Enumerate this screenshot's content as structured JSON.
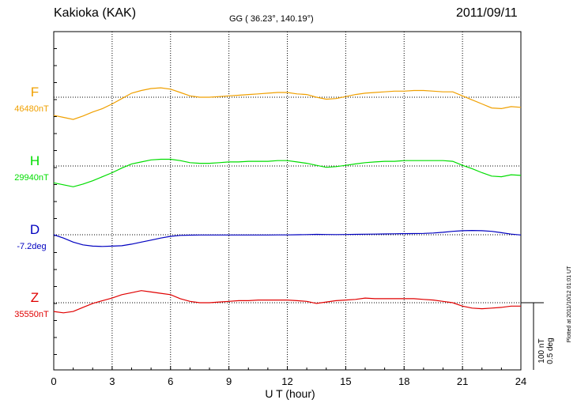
{
  "header": {
    "station": "Kakioka (KAK)",
    "coords": "GG ( 36.23°, 140.19°)",
    "date": "2011/09/11"
  },
  "scale_note": {
    "line1": "100 nT",
    "line2": "0.5 deg"
  },
  "footer_note": "Plotted at 2011/10/12 01:01  UT",
  "colors": {
    "F": "#f0a000",
    "H": "#00dd00",
    "D": "#0000c0",
    "Z": "#e00000"
  },
  "chart_data": {
    "type": "line",
    "xlabel": "U T (hour)",
    "xlim": [
      0,
      24
    ],
    "xticks": [
      "0",
      "3",
      "6",
      "9",
      "12",
      "15",
      "18",
      "21",
      "24"
    ],
    "grid": true,
    "scale_bar": "100 nT / 0.5 deg",
    "series": [
      {
        "name": "F",
        "baseline_label": "46480nT",
        "unit": "nT",
        "baseline": 46480,
        "x": [
          0,
          0.5,
          1,
          1.5,
          2,
          2.5,
          3,
          3.5,
          4,
          4.5,
          5,
          5.5,
          6,
          6.5,
          7,
          7.5,
          8,
          8.5,
          9,
          9.5,
          10,
          10.5,
          11,
          11.5,
          12,
          12.5,
          13,
          13.5,
          14,
          14.5,
          15,
          15.5,
          16,
          16.5,
          17,
          17.5,
          18,
          18.5,
          19,
          19.5,
          20,
          20.5,
          21,
          21.5,
          22,
          22.5,
          23,
          23.5,
          24
        ],
        "values": [
          46453,
          46450,
          46447,
          46452,
          46458,
          46463,
          46470,
          46478,
          46486,
          46490,
          46493,
          46494,
          46492,
          46487,
          46482,
          46480,
          46480,
          46481,
          46482,
          46483,
          46484,
          46485,
          46486,
          46487,
          46487,
          46485,
          46484,
          46480,
          46477,
          46478,
          46481,
          46484,
          46486,
          46487,
          46488,
          46489,
          46489,
          46490,
          46490,
          46489,
          46488,
          46488,
          46482,
          46476,
          46470,
          46464,
          46463,
          46466,
          46465
        ]
      },
      {
        "name": "H",
        "baseline_label": "29940nT",
        "unit": "nT",
        "baseline": 29940,
        "x": [
          0,
          0.5,
          1,
          1.5,
          2,
          2.5,
          3,
          3.5,
          4,
          4.5,
          5,
          5.5,
          6,
          6.5,
          7,
          7.5,
          8,
          8.5,
          9,
          9.5,
          10,
          10.5,
          11,
          11.5,
          12,
          12.5,
          13,
          13.5,
          14,
          14.5,
          15,
          15.5,
          16,
          16.5,
          17,
          17.5,
          18,
          18.5,
          19,
          19.5,
          20,
          20.5,
          21,
          21.5,
          22,
          22.5,
          23,
          23.5,
          24
        ],
        "values": [
          29915,
          29912,
          29909,
          29913,
          29918,
          29924,
          29930,
          29937,
          29943,
          29946,
          29949,
          29950,
          29950,
          29948,
          29945,
          29944,
          29944,
          29945,
          29946,
          29946,
          29947,
          29947,
          29947,
          29948,
          29948,
          29946,
          29944,
          29941,
          29938,
          29939,
          29941,
          29943,
          29945,
          29946,
          29947,
          29947,
          29948,
          29948,
          29948,
          29948,
          29948,
          29947,
          29941,
          29936,
          29930,
          29925,
          29924,
          29927,
          29926
        ]
      },
      {
        "name": "D",
        "baseline_label": "-7.2deg",
        "unit": "deg",
        "baseline": -7.2,
        "x": [
          0,
          0.5,
          1,
          1.5,
          2,
          2.5,
          3,
          3.5,
          4,
          4.5,
          5,
          5.5,
          6,
          6.5,
          7,
          7.5,
          8,
          8.5,
          9,
          9.5,
          10,
          10.5,
          11,
          11.5,
          12,
          12.5,
          13,
          13.5,
          14,
          14.5,
          15,
          15.5,
          16,
          16.5,
          17,
          17.5,
          18,
          18.5,
          19,
          19.5,
          20,
          20.5,
          21,
          21.5,
          22,
          22.5,
          23,
          23.5,
          24
        ],
        "values": [
          -7.2,
          -7.225,
          -7.255,
          -7.275,
          -7.285,
          -7.287,
          -7.285,
          -7.282,
          -7.27,
          -7.255,
          -7.24,
          -7.225,
          -7.212,
          -7.205,
          -7.203,
          -7.202,
          -7.202,
          -7.202,
          -7.202,
          -7.202,
          -7.202,
          -7.202,
          -7.202,
          -7.201,
          -7.201,
          -7.2,
          -7.199,
          -7.197,
          -7.198,
          -7.199,
          -7.198,
          -7.197,
          -7.196,
          -7.195,
          -7.194,
          -7.193,
          -7.192,
          -7.191,
          -7.19,
          -7.187,
          -7.182,
          -7.175,
          -7.17,
          -7.168,
          -7.17,
          -7.175,
          -7.185,
          -7.195,
          -7.202
        ]
      },
      {
        "name": "Z",
        "baseline_label": "35550nT",
        "unit": "nT",
        "baseline": 35550,
        "x": [
          0,
          0.5,
          1,
          1.5,
          2,
          2.5,
          3,
          3.5,
          4,
          4.5,
          5,
          5.5,
          6,
          6.5,
          7,
          7.5,
          8,
          8.5,
          9,
          9.5,
          10,
          10.5,
          11,
          11.5,
          12,
          12.5,
          13,
          13.5,
          14,
          14.5,
          15,
          15.5,
          16,
          16.5,
          17,
          17.5,
          18,
          18.5,
          19,
          19.5,
          20,
          20.5,
          21,
          21.5,
          22,
          22.5,
          23,
          23.5,
          24
        ],
        "values": [
          35537,
          35535,
          35537,
          35543,
          35549,
          35553,
          35557,
          35562,
          35565,
          35568,
          35566,
          35564,
          35562,
          35556,
          35552,
          35550,
          35550,
          35551,
          35552,
          35553,
          35553,
          35554,
          35554,
          35554,
          35554,
          35553,
          35552,
          35549,
          35551,
          35553,
          35554,
          35555,
          35557,
          35556,
          35556,
          35556,
          35556,
          35556,
          35555,
          35554,
          35552,
          35550,
          35545,
          35542,
          35541,
          35542,
          35543,
          35545,
          35545
        ]
      }
    ]
  }
}
